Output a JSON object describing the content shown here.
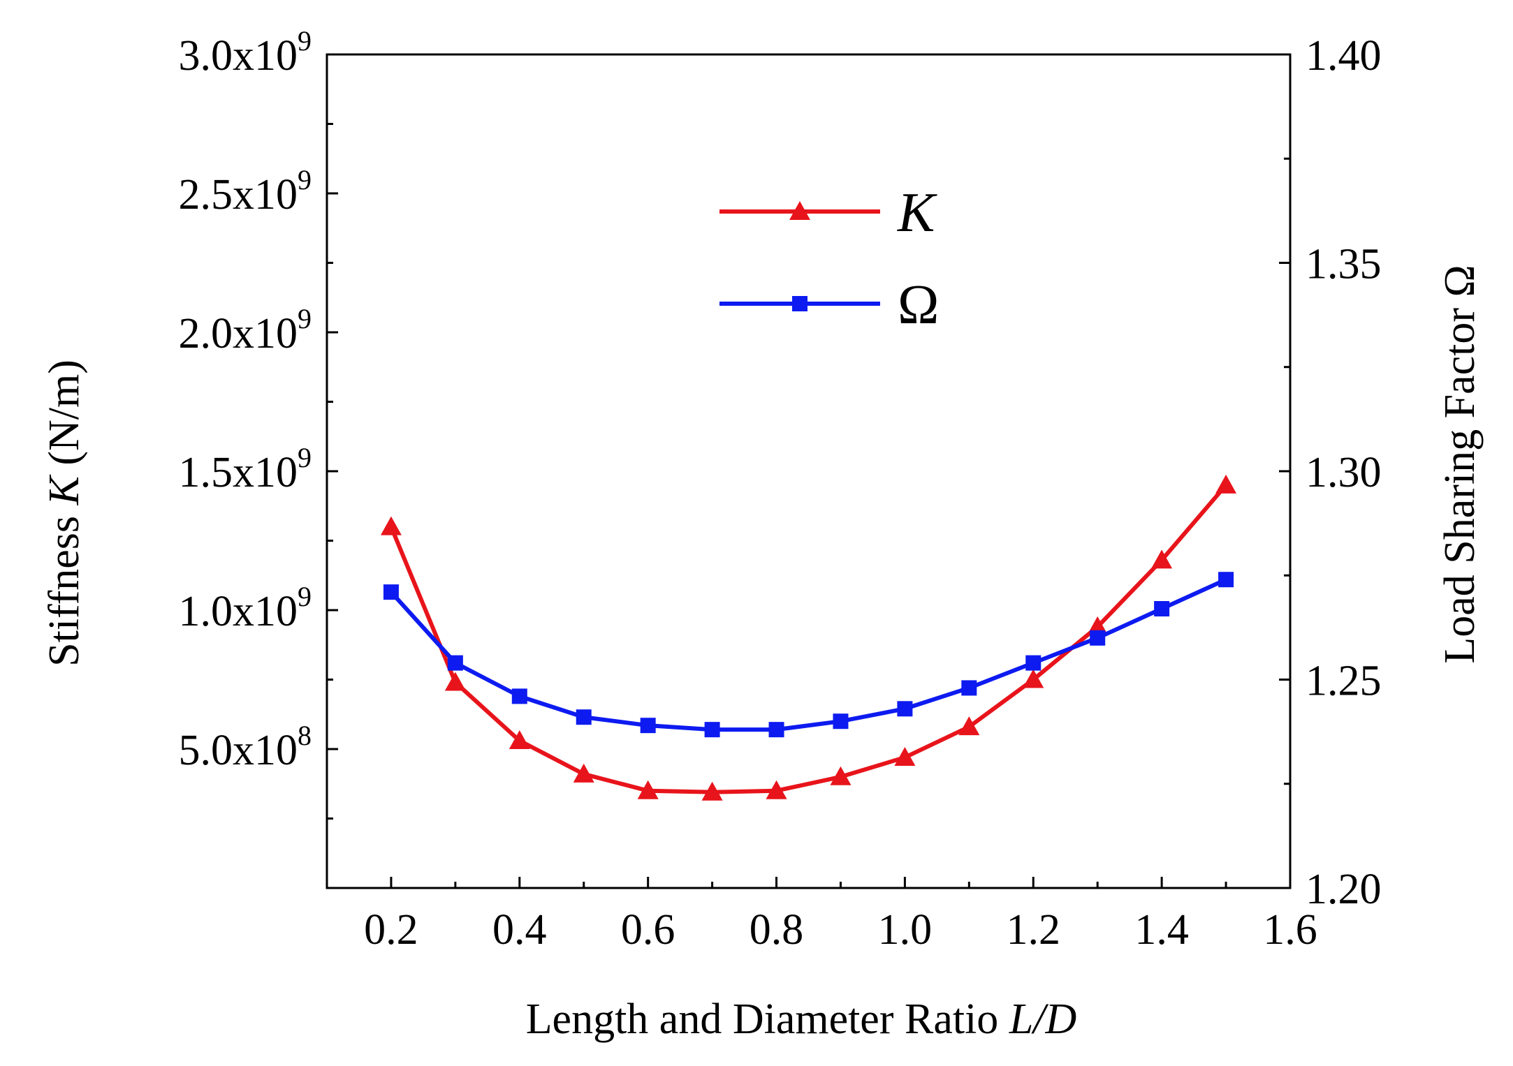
{
  "chart_data": {
    "type": "line",
    "title": "",
    "xlabel_prefix": "Length and Diameter Ratio ",
    "xlabel_var": "L/D",
    "ylabel_left_prefix": "Stiffness ",
    "ylabel_left_var": "K",
    "ylabel_left_suffix": " (N/m)",
    "ylabel_right": "Load Sharing Factor Ω",
    "xlim": [
      0.1,
      1.6
    ],
    "ylim_left": [
      0,
      3000000000
    ],
    "ylim_right": [
      1.2,
      1.4
    ],
    "x_ticks": [
      "0.2",
      "0.4",
      "0.6",
      "0.8",
      "1.0",
      "1.2",
      "1.4",
      "1.6"
    ],
    "y_left_ticks": [
      {
        "mantissa": "5.0x10",
        "exp": "8"
      },
      {
        "mantissa": "1.0x10",
        "exp": "9"
      },
      {
        "mantissa": "1.5x10",
        "exp": "9"
      },
      {
        "mantissa": "2.0x10",
        "exp": "9"
      },
      {
        "mantissa": "2.5x10",
        "exp": "9"
      },
      {
        "mantissa": "3.0x10",
        "exp": "9"
      }
    ],
    "y_right_ticks": [
      "1.20",
      "1.25",
      "1.30",
      "1.35",
      "1.40"
    ],
    "x": [
      0.2,
      0.3,
      0.4,
      0.5,
      0.6,
      0.7,
      0.8,
      0.9,
      1.0,
      1.1,
      1.2,
      1.3,
      1.4,
      1.5
    ],
    "series": [
      {
        "name": "K",
        "axis": "left",
        "color": "#e8141b",
        "marker": "triangle",
        "values": [
          1300000000,
          740000000,
          530000000,
          410000000,
          350000000,
          345000000,
          350000000,
          400000000,
          470000000,
          580000000,
          750000000,
          940000000,
          1180000000,
          1450000000
        ]
      },
      {
        "name": "Ω",
        "axis": "right",
        "color": "#0d1bf0",
        "marker": "square",
        "values": [
          1.271,
          1.254,
          1.246,
          1.241,
          1.239,
          1.238,
          1.238,
          1.24,
          1.243,
          1.248,
          1.254,
          1.26,
          1.267,
          1.274
        ]
      }
    ],
    "legend_position": "top-center"
  }
}
